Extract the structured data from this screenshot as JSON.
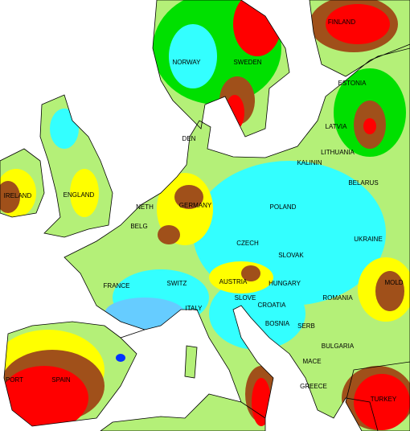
{
  "labels": [
    "FINLAND",
    "NORWAY",
    "SWEDEN",
    "ESTONIA",
    "LATVIA",
    "LITHUANIA",
    "KALININ",
    "DEN",
    "BELARUS",
    "IRELAND",
    "ENGLAND",
    "NETH",
    "GERMANY",
    "POLAND",
    "BELG",
    "UKRAINE",
    "CZECH",
    "SLOVAK",
    "FRANCE",
    "SWITZ",
    "AUSTRIA",
    "HUNGARY",
    "MOLD",
    "ROMANIA",
    "SLOVE",
    "CROATIA",
    "ITALY",
    "BOSNIA",
    "SERB",
    "BULGARIA",
    "PORT",
    "SPAIN",
    "MACE",
    "GREECE",
    "TURKEY"
  ]
}
